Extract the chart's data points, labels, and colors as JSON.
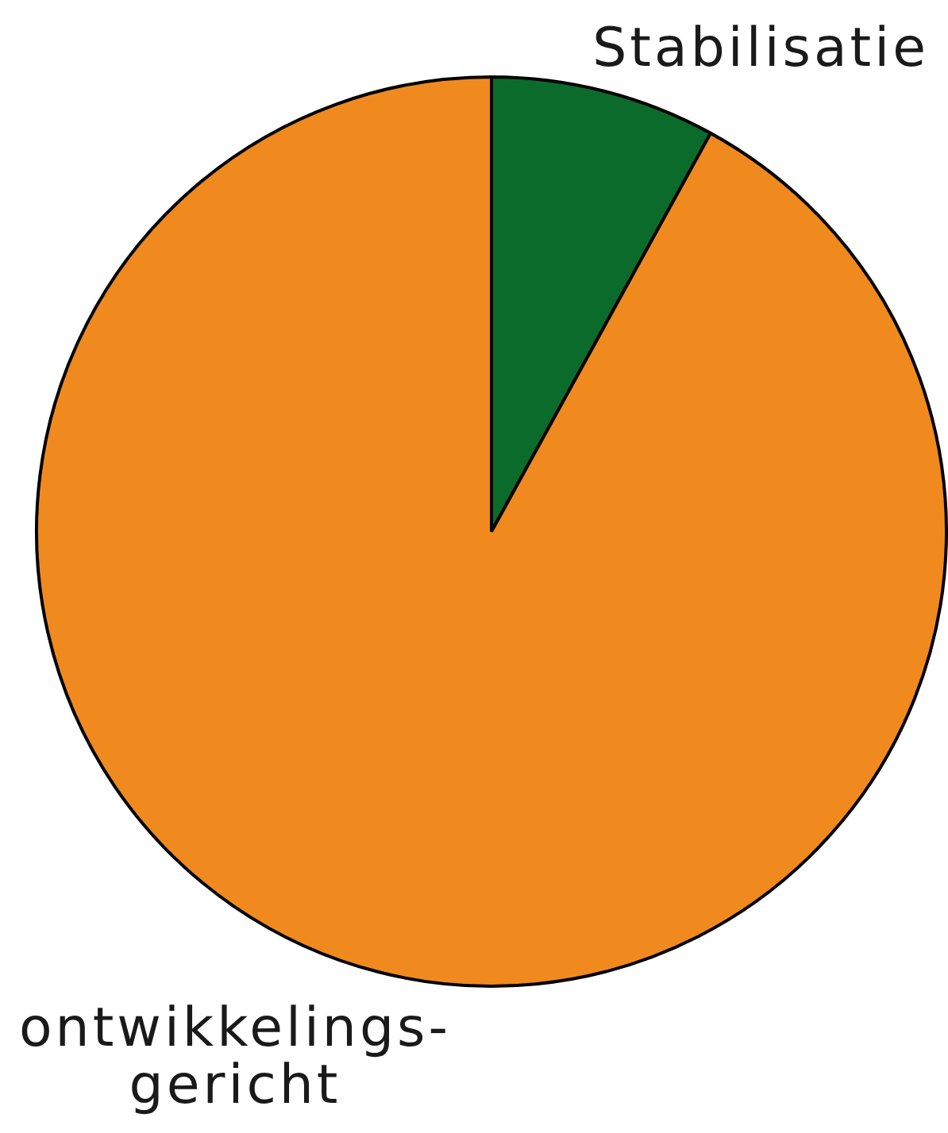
{
  "chart_data": {
    "type": "pie",
    "categories": [
      "Stabilisatie",
      "ontwikkelings-gericht"
    ],
    "values": [
      8,
      92
    ],
    "colors": [
      "#0b6b2b",
      "#f08a1f"
    ]
  }
}
